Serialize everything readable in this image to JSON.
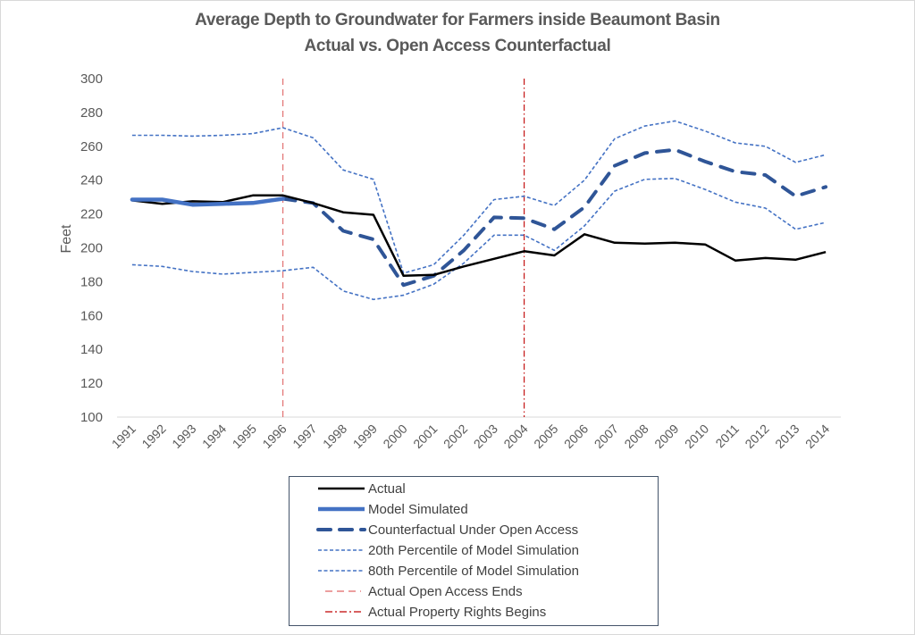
{
  "chart_data": {
    "type": "line",
    "title": "Average Depth to Groundwater for Farmers inside Beaumont Basin",
    "subtitle": "Actual vs. Open Access Counterfactual",
    "xlabel": "",
    "ylabel": "Feet",
    "ylim": [
      100,
      300
    ],
    "yticks": [
      100,
      120,
      140,
      160,
      180,
      200,
      220,
      240,
      260,
      280,
      300
    ],
    "grid": false,
    "legend_position": "bottom",
    "x": [
      "1991",
      "1992",
      "1993",
      "1994",
      "1995",
      "1996",
      "1997",
      "1998",
      "1999",
      "2000",
      "2001",
      "2002",
      "2003",
      "2004",
      "2005",
      "2006",
      "2007",
      "2008",
      "2009",
      "2010",
      "2011",
      "2012",
      "2013",
      "2014"
    ],
    "series": [
      {
        "name": "Actual",
        "color": "#000000",
        "style": "solid",
        "values": [
          228,
          226,
          227.5,
          227,
          231,
          231,
          226.5,
          221,
          219.5,
          183.5,
          184,
          189,
          193.5,
          198,
          195.5,
          208,
          203,
          202.5,
          203,
          202,
          192.5,
          194,
          193,
          197.5
        ]
      },
      {
        "name": "Model Simulated",
        "color": "#4472c4",
        "style": "solid-thick",
        "values": [
          228.5,
          228.5,
          225.5,
          226,
          226.5,
          229,
          null,
          null,
          null,
          null,
          null,
          null,
          null,
          null,
          null,
          null,
          null,
          null,
          null,
          null,
          null,
          null,
          null,
          null
        ]
      },
      {
        "name": "Counterfactual Under Open Access",
        "color": "#2f5597",
        "style": "dashed-thick",
        "values": [
          null,
          null,
          null,
          null,
          null,
          229,
          226.5,
          210,
          205,
          178,
          183.5,
          198.5,
          218,
          217.5,
          211,
          224,
          248.5,
          256,
          258,
          251,
          245,
          243,
          230.5,
          236
        ]
      },
      {
        "name": "20th Percentile of Model Simulation",
        "color": "#4472c4",
        "style": "dotted",
        "values": [
          190,
          189,
          186,
          184.5,
          185.5,
          186.5,
          188.5,
          174.5,
          169.5,
          172,
          178.5,
          191,
          207.5,
          207.5,
          198.5,
          213,
          233.5,
          240.5,
          241,
          234.5,
          227,
          223.5,
          211,
          215
        ]
      },
      {
        "name": "80th Percentile of Model Simulation",
        "color": "#4472c4",
        "style": "dotted",
        "values": [
          266.5,
          266.5,
          266,
          266.5,
          267.5,
          271,
          265,
          246,
          240.5,
          185,
          190,
          207.5,
          228.5,
          230.5,
          225,
          240,
          264.5,
          272,
          275,
          269,
          262,
          260,
          250.5,
          255
        ]
      }
    ],
    "vlines": [
      {
        "name": "Actual Open Access Ends",
        "x": "1996",
        "color": "#e06666",
        "style": "dashed"
      },
      {
        "name": "Actual Property Rights Begins",
        "x": "2004",
        "color": "#c00000",
        "style": "dash-dot"
      }
    ],
    "legend": [
      "Actual",
      "Model Simulated",
      "Counterfactual Under Open Access",
      "20th Percentile of Model Simulation",
      "80th Percentile of Model Simulation",
      "Actual Open Access Ends",
      "Actual Property Rights Begins"
    ]
  }
}
